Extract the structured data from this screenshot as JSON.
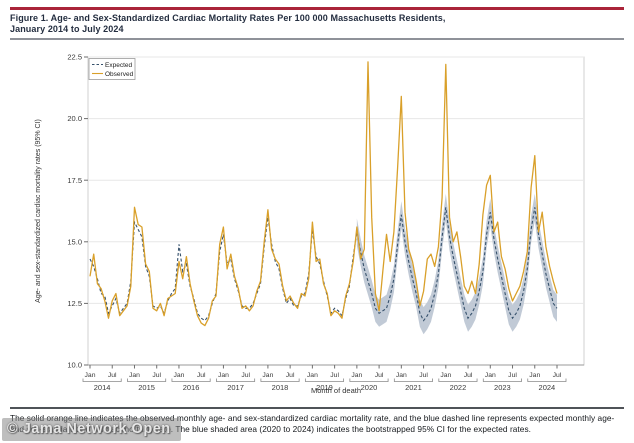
{
  "figure": {
    "title_line1": "Figure 1. Age- and Sex-Standardized Cardiac Mortality Rates Per 100 000 Massachusetts Residents,",
    "title_line2": "January 2014 to July 2024",
    "footnote": "The solid orange line indicates the observed monthly age- and sex-standardized cardiac mortality rate, and the blue dashed line represents expected monthly age- and sex-standardized cardiac mortality rate. The blue shaded area (2020 to 2024) indicates the bootstrapped 95% CI for the expected rates.",
    "watermark": "© Jama Network Open"
  },
  "colors": {
    "accent_red": "#AA2439",
    "observed": "#D9A02A",
    "expected": "#35506B",
    "ci_band": "#BAC4D1",
    "grid": "#E7E7E7",
    "frame": "#D2D2D2",
    "axis": "#9A9A9A",
    "tick": "#6E6E6E",
    "tick_label": "#3A3A3A"
  },
  "chart_data": {
    "type": "line",
    "title": "",
    "xlabel": "Month of death",
    "ylabel": "Age- and sex-standardized cardiac mortality rates (95% CI)",
    "ylim": [
      10.0,
      22.5
    ],
    "yticks": [
      10.0,
      12.5,
      15.0,
      17.5,
      20.0,
      22.5
    ],
    "grid": true,
    "legend_position": "top-left",
    "x_start": "2014-01",
    "x_end": "2024-07",
    "x_frequency": "monthly",
    "years": [
      2014,
      2015,
      2016,
      2017,
      2018,
      2019,
      2020,
      2021,
      2022,
      2023,
      2024
    ],
    "month_tick_labels": [
      "Jan",
      "Jul"
    ],
    "legend": [
      {
        "name": "Expected",
        "style": "dashed"
      },
      {
        "name": "Observed",
        "style": "solid"
      }
    ],
    "ci": {
      "start_index": 72,
      "halfwidth": 0.55
    },
    "series": [
      {
        "name": "Expected",
        "values": [
          14.3,
          14.0,
          13.5,
          12.9,
          12.8,
          12.1,
          12.4,
          12.7,
          12.1,
          12.3,
          12.5,
          13.4,
          15.8,
          15.5,
          15.2,
          14.0,
          13.6,
          12.4,
          12.3,
          12.4,
          12.1,
          12.6,
          12.9,
          13.1,
          14.9,
          13.8,
          14.1,
          13.2,
          12.7,
          12.1,
          11.9,
          11.8,
          12.0,
          12.5,
          12.9,
          14.6,
          15.3,
          14.1,
          14.3,
          13.5,
          13.0,
          12.4,
          12.3,
          12.3,
          12.5,
          12.9,
          13.3,
          14.8,
          16.0,
          14.9,
          14.2,
          13.9,
          13.1,
          12.5,
          12.7,
          12.4,
          12.4,
          12.8,
          12.9,
          13.7,
          15.5,
          14.4,
          14.1,
          13.4,
          12.8,
          12.1,
          12.3,
          12.2,
          12.0,
          12.7,
          13.2,
          14.4,
          15.4,
          14.6,
          13.9,
          13.4,
          12.9,
          12.3,
          12.1,
          12.2,
          12.3,
          12.8,
          13.5,
          14.9,
          16.1,
          15.0,
          14.2,
          13.5,
          12.9,
          12.1,
          11.8,
          12.0,
          12.3,
          12.9,
          13.7,
          15.2,
          16.4,
          15.2,
          14.4,
          13.7,
          13.0,
          12.3,
          11.9,
          12.1,
          12.4,
          13.0,
          13.8,
          15.3,
          16.2,
          15.1,
          14.3,
          13.6,
          12.9,
          12.2,
          11.9,
          12.1,
          12.4,
          13.0,
          13.9,
          15.5,
          16.4,
          15.3,
          14.5,
          13.7,
          13.1,
          12.5,
          12.3
        ]
      },
      {
        "name": "Observed",
        "values": [
          13.6,
          14.5,
          13.3,
          13.1,
          12.6,
          11.9,
          12.6,
          12.9,
          12.0,
          12.2,
          12.4,
          13.2,
          16.4,
          15.7,
          15.6,
          14.1,
          13.8,
          12.3,
          12.2,
          12.5,
          12.0,
          12.7,
          12.8,
          12.9,
          14.2,
          13.5,
          14.4,
          13.3,
          12.6,
          12.0,
          11.7,
          11.6,
          11.9,
          12.6,
          12.8,
          14.9,
          15.6,
          13.9,
          14.5,
          13.6,
          13.1,
          12.3,
          12.4,
          12.2,
          12.4,
          13.0,
          13.4,
          15.0,
          16.3,
          14.7,
          14.3,
          14.1,
          13.2,
          12.6,
          12.8,
          12.5,
          12.3,
          12.9,
          12.8,
          13.5,
          15.8,
          14.2,
          14.3,
          13.3,
          12.9,
          12.0,
          12.2,
          12.1,
          11.9,
          12.8,
          13.3,
          14.2,
          15.6,
          14.3,
          14.7,
          22.3,
          16.0,
          12.9,
          12.2,
          13.8,
          15.3,
          14.2,
          15.4,
          18.0,
          20.9,
          16.2,
          14.7,
          14.2,
          13.4,
          12.4,
          13.0,
          14.3,
          14.5,
          14.0,
          14.8,
          16.8,
          22.2,
          16.0,
          15.0,
          15.4,
          14.4,
          13.2,
          12.9,
          13.4,
          12.9,
          14.1,
          16.1,
          17.3,
          17.7,
          15.4,
          15.8,
          14.4,
          13.9,
          13.1,
          12.6,
          12.9,
          13.2,
          13.8,
          14.6,
          17.2,
          18.5,
          15.4,
          16.2,
          14.8,
          14.0,
          13.4,
          12.9
        ]
      }
    ]
  }
}
